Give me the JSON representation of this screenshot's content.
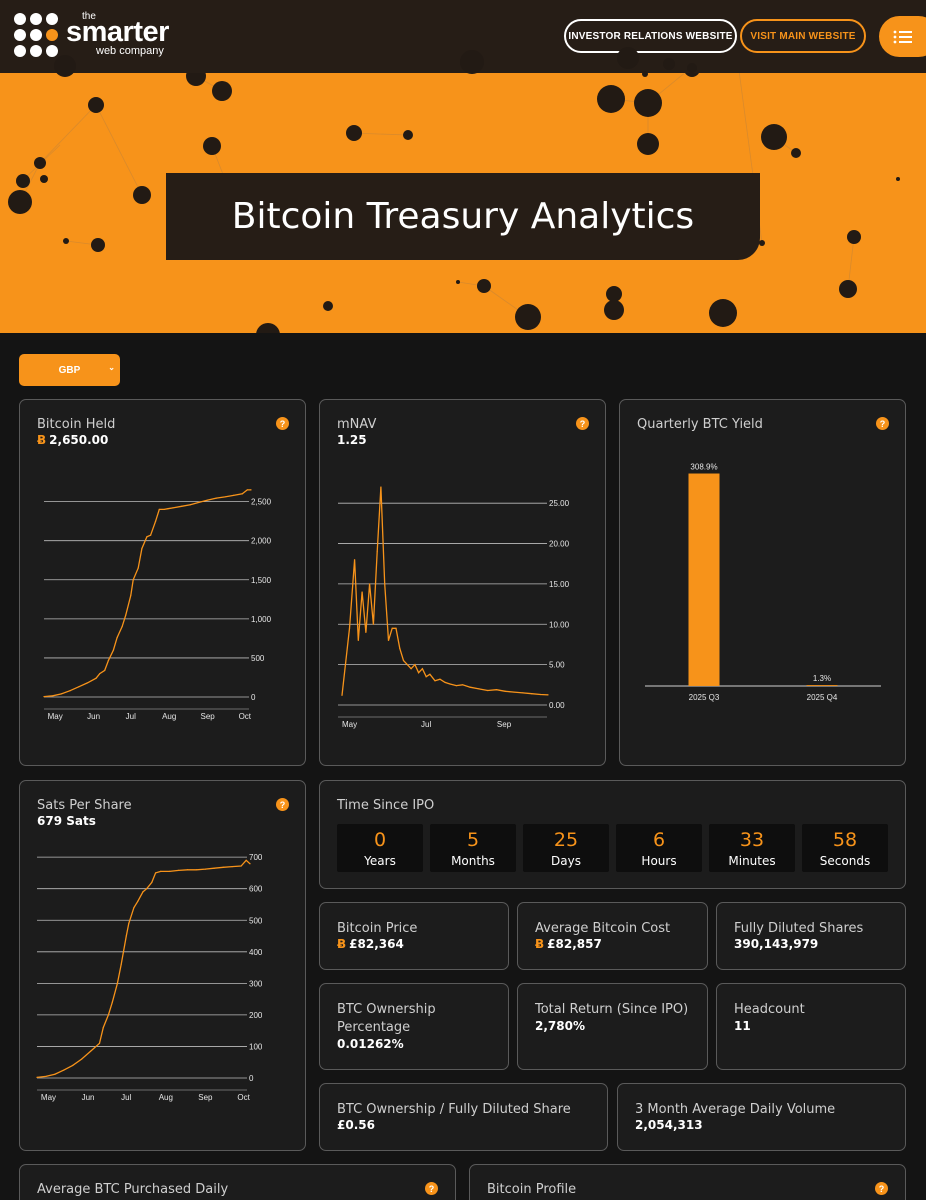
{
  "header": {
    "logo_the": "the",
    "logo_smarter": "smarter",
    "logo_company": "web company",
    "investor_relations_label": "INVESTOR RELATIONS WEBSITE",
    "visit_main_label": "VISIT MAIN WEBSITE",
    "menu_icon": "list-menu-icon"
  },
  "hero": {
    "title": "Bitcoin Treasury Analytics"
  },
  "currency": {
    "selected": "GBP"
  },
  "colors": {
    "accent": "#f7931a",
    "dark_brown": "#261d16",
    "card_bg": "#1c1c1c",
    "page_bg": "#141414"
  },
  "cards": {
    "bitcoin_held": {
      "title": "Bitcoin Held",
      "value": "2,650.00",
      "currency_symbol": "Ƀ"
    },
    "mnav": {
      "title": "mNAV",
      "value": "1.25"
    },
    "quarterly_yield": {
      "title": "Quarterly BTC Yield"
    },
    "sats_per_share": {
      "title": "Sats Per Share",
      "value": "679 Sats"
    },
    "time_since_ipo": {
      "title": "Time Since IPO",
      "units": [
        {
          "value": "0",
          "label": "Years"
        },
        {
          "value": "5",
          "label": "Months"
        },
        {
          "value": "25",
          "label": "Days"
        },
        {
          "value": "6",
          "label": "Hours"
        },
        {
          "value": "33",
          "label": "Minutes"
        },
        {
          "value": "58",
          "label": "Seconds"
        }
      ]
    },
    "bitcoin_price": {
      "title": "Bitcoin Price",
      "value": "£82,364"
    },
    "avg_bitcoin_cost": {
      "title": "Average Bitcoin Cost",
      "value": "£82,857"
    },
    "fully_diluted_shares": {
      "title": "Fully Diluted Shares",
      "value": "390,143,979"
    },
    "btc_ownership_pct": {
      "title_line1": "BTC Ownership",
      "title_line2": "Percentage",
      "value": "0.01262%"
    },
    "total_return": {
      "title": "Total Return (Since IPO)",
      "value": "2,780%"
    },
    "headcount": {
      "title": "Headcount",
      "value": "11"
    },
    "btc_per_share": {
      "title": "BTC Ownership / Fully Diluted Share",
      "value": "£0.56"
    },
    "avg_daily_volume": {
      "title": "3 Month Average Daily Volume",
      "value": "2,054,313"
    },
    "avg_btc_daily": {
      "title": "Average BTC Purchased Daily"
    },
    "bitcoin_profile": {
      "title": "Bitcoin Profile"
    }
  },
  "chart_data": [
    {
      "id": "bitcoin_held",
      "type": "line",
      "x": [
        "Apr 22",
        "Apr 29",
        "May 6",
        "May 13",
        "May 20",
        "May 27",
        "Jun 3",
        "Jun 6",
        "Jun 10",
        "Jun 13",
        "Jun 17",
        "Jun 20",
        "Jun 24",
        "Jun 27",
        "Jul 1",
        "Jul 3",
        "Jul 7",
        "Jul 10",
        "Jul 14",
        "Jul 17",
        "Jul 21",
        "Jul 24",
        "Jul 28",
        "Jul 31",
        "Aug 4",
        "Aug 11",
        "Aug 18",
        "Aug 25",
        "Sep 1",
        "Sep 8",
        "Sep 15",
        "Sep 22",
        "Sep 29",
        "Oct 3",
        "Oct 6"
      ],
      "y": [
        5,
        15,
        40,
        80,
        130,
        180,
        240,
        300,
        340,
        470,
        600,
        760,
        900,
        1050,
        1300,
        1500,
        1650,
        1900,
        2050,
        2070,
        2250,
        2400,
        2400,
        2410,
        2420,
        2440,
        2460,
        2490,
        2520,
        2545,
        2560,
        2580,
        2600,
        2650,
        2650
      ],
      "xticks": [
        "May",
        "Jun",
        "Jul",
        "Aug",
        "Sep",
        "Oct"
      ],
      "yticks": [
        "0",
        "500",
        "1,000",
        "1,500",
        "2,000",
        "2,500"
      ],
      "ylim": [
        0,
        2700
      ]
    },
    {
      "id": "mnav",
      "type": "line",
      "x": [
        "Apr 25",
        "May 1",
        "May 5",
        "May 8",
        "May 11",
        "May 14",
        "May 17",
        "May 20",
        "May 23",
        "May 26",
        "May 29",
        "Jun 1",
        "Jun 4",
        "Jun 7",
        "Jun 10",
        "Jun 13",
        "Jun 16",
        "Jun 19",
        "Jun 22",
        "Jun 25",
        "Jun 28",
        "Jul 1",
        "Jul 4",
        "Jul 8",
        "Jul 12",
        "Jul 16",
        "Jul 20",
        "Jul 25",
        "Jul 30",
        "Aug 5",
        "Aug 12",
        "Aug 19",
        "Aug 26",
        "Sep 2",
        "Sep 9",
        "Sep 16",
        "Sep 23",
        "Sep 30",
        "Oct 6"
      ],
      "y": [
        1.2,
        9.5,
        18.0,
        8.0,
        14.0,
        9.0,
        15.0,
        10.0,
        19.0,
        27.0,
        15.0,
        8.0,
        9.5,
        9.5,
        7.0,
        5.5,
        5.0,
        4.5,
        5.0,
        4.0,
        4.5,
        3.5,
        3.8,
        3.0,
        3.2,
        2.8,
        2.6,
        2.4,
        2.5,
        2.2,
        2.0,
        1.8,
        1.9,
        1.7,
        1.6,
        1.5,
        1.4,
        1.3,
        1.25
      ],
      "xticks": [
        "May",
        "Jul",
        "Sep"
      ],
      "yticks": [
        "0.00",
        "5.00",
        "10.00",
        "15.00",
        "20.00",
        "25.00"
      ],
      "ylim": [
        0,
        27.5
      ]
    },
    {
      "id": "quarterly_btc_yield",
      "type": "bar",
      "categories": [
        "2025 Q3",
        "2025 Q4"
      ],
      "values": [
        308.9,
        1.3
      ],
      "labels": [
        "308.9%",
        "1.3%"
      ],
      "ylim": [
        0,
        330
      ]
    },
    {
      "id": "sats_per_share",
      "type": "line",
      "x": [
        "Apr 22",
        "Apr 29",
        "May 6",
        "May 13",
        "May 20",
        "May 27",
        "Jun 3",
        "Jun 10",
        "Jun 13",
        "Jun 17",
        "Jun 20",
        "Jun 24",
        "Jun 27",
        "Jul 1",
        "Jul 3",
        "Jul 7",
        "Jul 10",
        "Jul 14",
        "Jul 17",
        "Jul 21",
        "Jul 24",
        "Jul 28",
        "Aug 4",
        "Aug 11",
        "Aug 18",
        "Aug 25",
        "Sep 1",
        "Sep 8",
        "Sep 15",
        "Sep 22",
        "Sep 29",
        "Oct 3",
        "Oct 6"
      ],
      "y": [
        2,
        5,
        12,
        25,
        40,
        60,
        85,
        110,
        160,
        200,
        240,
        300,
        360,
        450,
        490,
        540,
        560,
        590,
        600,
        620,
        650,
        655,
        655,
        658,
        660,
        660,
        662,
        665,
        668,
        670,
        672,
        690,
        679
      ],
      "xticks": [
        "May",
        "Jun",
        "Jul",
        "Aug",
        "Sep",
        "Oct"
      ],
      "yticks": [
        "0",
        "100",
        "200",
        "300",
        "400",
        "500",
        "600",
        "700"
      ],
      "ylim": [
        0,
        710
      ]
    }
  ]
}
